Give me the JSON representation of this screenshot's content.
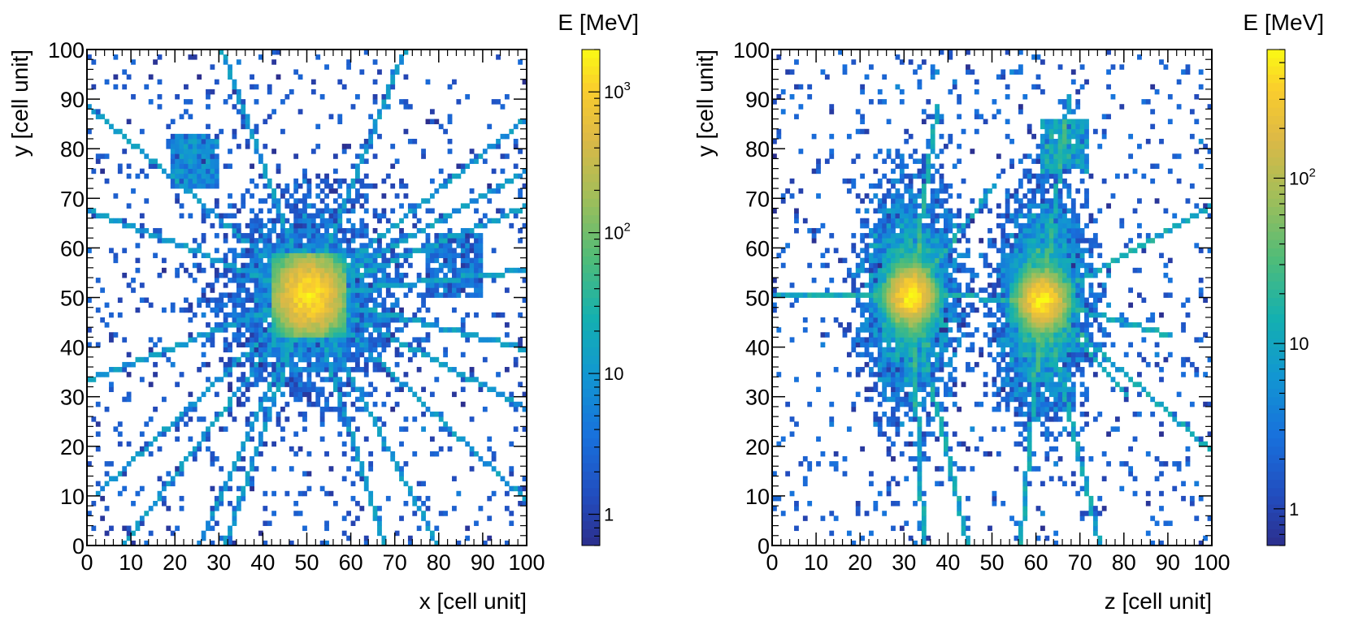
{
  "chart_data": [
    {
      "type": "heatmap",
      "name": "xy-projection",
      "xlabel": "x [cell unit]",
      "ylabel": "y [cell unit]",
      "colorbar_label": "E [MeV]",
      "xlim": [
        0,
        100
      ],
      "ylim": [
        0,
        100
      ],
      "x_ticks": [
        0,
        10,
        20,
        30,
        40,
        50,
        60,
        70,
        80,
        90,
        100
      ],
      "y_ticks": [
        0,
        10,
        20,
        30,
        40,
        50,
        60,
        70,
        80,
        90,
        100
      ],
      "colorbar_range": [
        0.6,
        2000
      ],
      "colorbar_ticks": [
        {
          "value": 1,
          "base": "1",
          "exp": ""
        },
        {
          "value": 10,
          "base": "10",
          "exp": ""
        },
        {
          "value": 100,
          "base": "10",
          "exp": "2"
        },
        {
          "value": 1000,
          "base": "10",
          "exp": "3"
        }
      ],
      "bins": 100,
      "hotspots": [
        {
          "x": 50,
          "y": 50,
          "peak_energy": 1500,
          "spread": 9
        }
      ],
      "secondary_clusters": [
        {
          "x": 24,
          "y": 77,
          "peak_energy": 20,
          "spread": 4
        },
        {
          "x": 83,
          "y": 56,
          "peak_energy": 10,
          "spread": 5
        }
      ],
      "tracks": [
        {
          "from": [
            50,
            50
          ],
          "to": [
            0,
            88
          ]
        },
        {
          "from": [
            50,
            50
          ],
          "to": [
            0,
            67
          ]
        },
        {
          "from": [
            50,
            50
          ],
          "to": [
            0,
            33
          ]
        },
        {
          "from": [
            50,
            50
          ],
          "to": [
            2,
            10
          ]
        },
        {
          "from": [
            50,
            50
          ],
          "to": [
            8,
            0
          ]
        },
        {
          "from": [
            50,
            50
          ],
          "to": [
            25,
            0
          ]
        },
        {
          "from": [
            50,
            50
          ],
          "to": [
            31,
            0
          ]
        },
        {
          "from": [
            50,
            50
          ],
          "to": [
            67,
            0
          ]
        },
        {
          "from": [
            50,
            50
          ],
          "to": [
            79,
            0
          ]
        },
        {
          "from": [
            50,
            50
          ],
          "to": [
            100,
            8
          ]
        },
        {
          "from": [
            50,
            50
          ],
          "to": [
            100,
            27
          ]
        },
        {
          "from": [
            50,
            50
          ],
          "to": [
            100,
            39
          ]
        },
        {
          "from": [
            50,
            50
          ],
          "to": [
            100,
            55
          ]
        },
        {
          "from": [
            50,
            50
          ],
          "to": [
            100,
            68
          ]
        },
        {
          "from": [
            50,
            50
          ],
          "to": [
            100,
            86
          ]
        },
        {
          "from": [
            50,
            50
          ],
          "to": [
            100,
            75
          ]
        },
        {
          "from": [
            50,
            50
          ],
          "to": [
            30,
            100
          ]
        },
        {
          "from": [
            50,
            50
          ],
          "to": [
            72,
            100
          ]
        }
      ]
    },
    {
      "type": "heatmap",
      "name": "zy-projection",
      "xlabel": "z [cell unit]",
      "ylabel": "y [cell unit]",
      "colorbar_label": "E [MeV]",
      "xlim": [
        0,
        100
      ],
      "ylim": [
        0,
        100
      ],
      "x_ticks": [
        0,
        10,
        20,
        30,
        40,
        50,
        60,
        70,
        80,
        90,
        100
      ],
      "y_ticks": [
        0,
        10,
        20,
        30,
        40,
        50,
        60,
        70,
        80,
        90,
        100
      ],
      "colorbar_range": [
        0.6,
        600
      ],
      "colorbar_ticks": [
        {
          "value": 1,
          "base": "1",
          "exp": ""
        },
        {
          "value": 10,
          "base": "10",
          "exp": ""
        },
        {
          "value": 100,
          "base": "10",
          "exp": "2"
        }
      ],
      "bins": 100,
      "hotspots": [
        {
          "x": 31,
          "y": 50,
          "peak_energy": 500,
          "spread": 6
        },
        {
          "x": 61,
          "y": 49,
          "peak_energy": 500,
          "spread": 6
        }
      ],
      "secondary_clusters": [
        {
          "x": 66,
          "y": 80,
          "peak_energy": 30,
          "spread": 4
        }
      ],
      "tracks": [
        {
          "from": [
            25,
            50
          ],
          "to": [
            0,
            50
          ]
        },
        {
          "from": [
            31,
            50
          ],
          "to": [
            61,
            49
          ]
        },
        {
          "from": [
            61,
            49
          ],
          "to": [
            56,
            0
          ]
        },
        {
          "from": [
            61,
            49
          ],
          "to": [
            100,
            18
          ]
        },
        {
          "from": [
            61,
            49
          ],
          "to": [
            100,
            68
          ]
        },
        {
          "from": [
            61,
            49
          ],
          "to": [
            67,
            90
          ]
        },
        {
          "from": [
            31,
            50
          ],
          "to": [
            37,
            88
          ]
        },
        {
          "from": [
            31,
            50
          ],
          "to": [
            44,
            0
          ]
        },
        {
          "from": [
            31,
            50
          ],
          "to": [
            34,
            0
          ]
        },
        {
          "from": [
            61,
            49
          ],
          "to": [
            74,
            0
          ]
        },
        {
          "from": [
            61,
            49
          ],
          "to": [
            90,
            42
          ]
        },
        {
          "from": [
            31,
            50
          ],
          "to": [
            50,
            72
          ]
        },
        {
          "from": [
            61,
            49
          ],
          "to": [
            80,
            30
          ]
        }
      ]
    }
  ]
}
